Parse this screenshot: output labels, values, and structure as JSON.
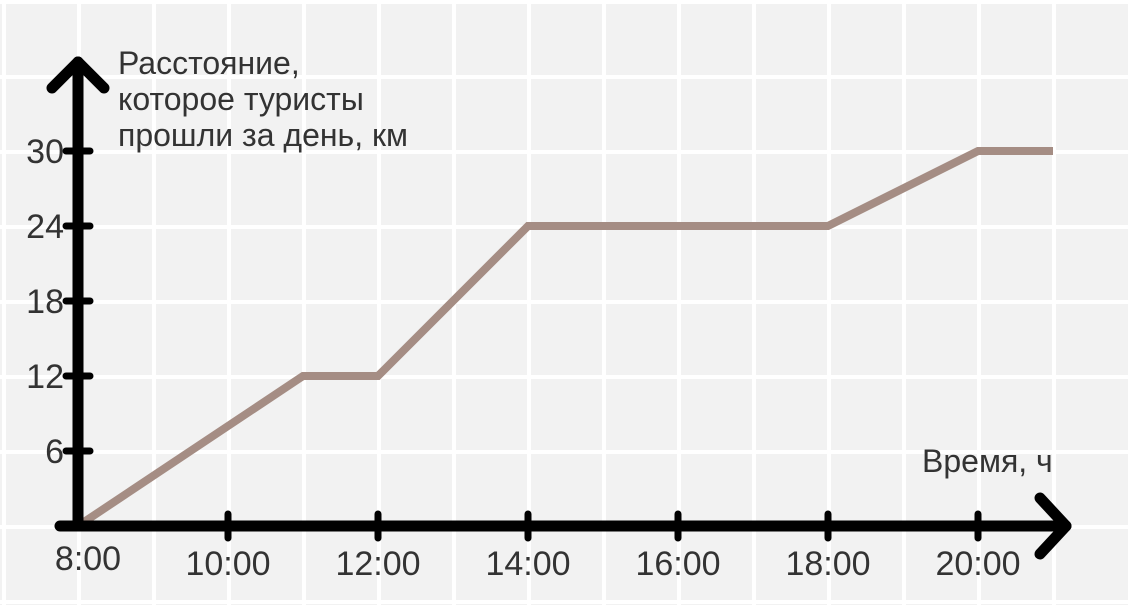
{
  "chart_data": {
    "type": "line",
    "ylabel": [
      "Расстояние,",
      "которое туристы",
      "прошли за день, км"
    ],
    "xlabel": "Время, ч",
    "x_ticks": [
      "8:00",
      "10:00",
      "12:00",
      "14:00",
      "16:00",
      "18:00",
      "20:00"
    ],
    "y_ticks": [
      "6",
      "12",
      "18",
      "24",
      "30"
    ],
    "xlim": [
      8,
      21
    ],
    "ylim": [
      0,
      30
    ],
    "grid": true,
    "series": [
      {
        "color": "#a58d84",
        "points": [
          {
            "x": 8,
            "y": 0
          },
          {
            "x": 11,
            "y": 12
          },
          {
            "x": 12,
            "y": 12
          },
          {
            "x": 14,
            "y": 24
          },
          {
            "x": 18,
            "y": 24
          },
          {
            "x": 20,
            "y": 30
          },
          {
            "x": 21,
            "y": 30
          }
        ]
      }
    ]
  }
}
